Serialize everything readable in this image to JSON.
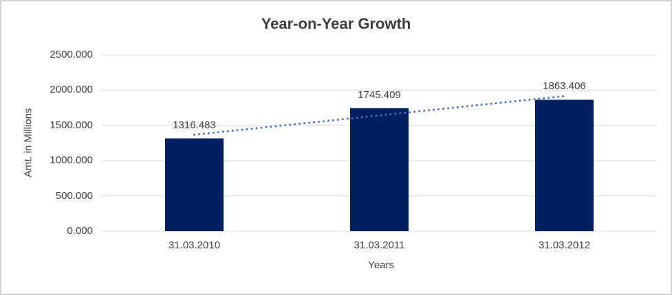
{
  "chart_data": {
    "type": "bar",
    "title": "Year-on-Year Growth",
    "xlabel": "Years",
    "ylabel": "Amt. in Millions",
    "categories": [
      "31.03.2010",
      "31.03.2011",
      "31.03.2012"
    ],
    "values": [
      1316.483,
      1745.409,
      1863.406
    ],
    "data_labels": [
      "1316.483",
      "1745.409",
      "1863.406"
    ],
    "ylim": [
      0,
      2500
    ],
    "yticks": [
      0,
      500,
      1000,
      1500,
      2000,
      2500
    ],
    "ytick_labels": [
      "0.000",
      "500.000",
      "1000.000",
      "1500.000",
      "2000.000",
      "2500.000"
    ],
    "grid": true,
    "legend": "none",
    "trendline": {
      "type": "linear",
      "style": "dotted",
      "color": "#4472C4"
    },
    "colors": {
      "bar": "#002060",
      "gridline": "#D9D9D9",
      "axis_line": "#D9D9D9",
      "text": "#404040",
      "title": "#3D3D3D",
      "frame_border": "#D2D2D2",
      "background": "#FFFFFF"
    }
  }
}
